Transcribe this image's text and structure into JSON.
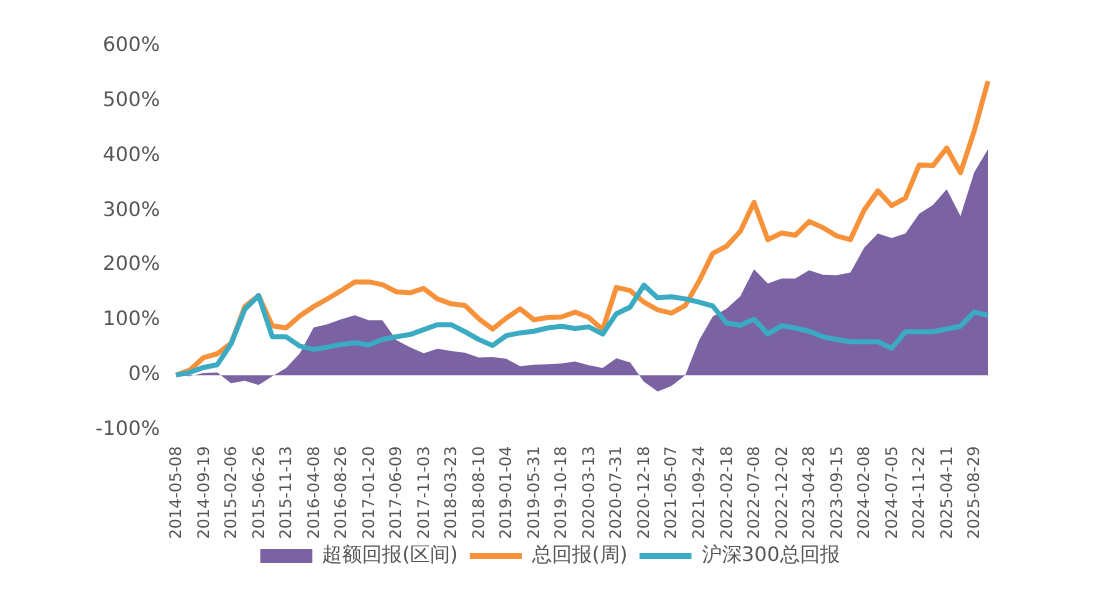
{
  "chart_data": {
    "type": "line",
    "categories": [
      "2014-05-08",
      null,
      "2014-09-19",
      null,
      "2015-02-06",
      null,
      "2015-06-26",
      null,
      "2015-11-13",
      null,
      "2016-04-08",
      null,
      "2016-08-26",
      null,
      "2017-01-20",
      null,
      "2017-06-09",
      null,
      "2017-11-03",
      null,
      "2018-03-23",
      null,
      "2018-08-10",
      null,
      "2019-01-04",
      null,
      "2019-05-31",
      null,
      "2019-10-18",
      null,
      "2020-03-13",
      null,
      "2020-07-31",
      null,
      "2020-12-18",
      null,
      "2021-05-07",
      null,
      "2021-09-24",
      null,
      "2022-02-18",
      null,
      "2022-07-08",
      null,
      "2022-12-02",
      null,
      "2023-04-28",
      null,
      "2023-09-15",
      null,
      "2024-02-08",
      null,
      "2024-07-05",
      null,
      "2024-11-22",
      null,
      "2025-04-11",
      null,
      "2025-08-29",
      null
    ],
    "series": [
      {
        "name": "超额回报(区间)",
        "type": "area",
        "color": "#7b62a3",
        "values": [
          0,
          -2,
          4,
          5,
          -15,
          -10,
          -18,
          -2,
          13,
          40,
          87,
          93,
          102,
          109,
          100,
          100,
          64,
          51,
          40,
          48,
          44,
          41,
          32,
          33,
          30,
          16,
          19,
          20,
          21,
          25,
          18,
          13,
          31,
          23,
          -12,
          -30,
          -20,
          0,
          63,
          107,
          121,
          144,
          193,
          167,
          176,
          176,
          191,
          183,
          182,
          187,
          232,
          258,
          250,
          258,
          294,
          310,
          339,
          290,
          370,
          412
        ]
      },
      {
        "name": "总回报(周)",
        "color": "#f7923a",
        "values": [
          0,
          9,
          32,
          39,
          58,
          125,
          145,
          90,
          86,
          108,
          125,
          139,
          154,
          170,
          170,
          165,
          152,
          150,
          158,
          139,
          130,
          127,
          103,
          84,
          104,
          121,
          101,
          105,
          106,
          115,
          105,
          83,
          160,
          154,
          133,
          119,
          113,
          127,
          171,
          222,
          235,
          262,
          315,
          247,
          259,
          255,
          280,
          269,
          254,
          247,
          301,
          336,
          309,
          323,
          383,
          382,
          414,
          369,
          445,
          536
        ]
      },
      {
        "name": "沪深300总回报",
        "color": "#3aabc3",
        "values": [
          0,
          5,
          14,
          19,
          57,
          120,
          145,
          70,
          70,
          53,
          47,
          51,
          56,
          59,
          55,
          65,
          70,
          74,
          83,
          92,
          92,
          79,
          65,
          54,
          72,
          77,
          80,
          86,
          89,
          85,
          88,
          75,
          112,
          124,
          164,
          141,
          143,
          139,
          133,
          126,
          95,
          91,
          102,
          75,
          90,
          86,
          80,
          70,
          65,
          61,
          61,
          61,
          49,
          79,
          79,
          79,
          84,
          89,
          115,
          109
        ]
      }
    ],
    "ylim": [
      -100,
      600
    ],
    "yticks": [
      {
        "value": -100,
        "label": "-100%"
      },
      {
        "value": 0,
        "label": "0%"
      },
      {
        "value": 100,
        "label": "100%"
      },
      {
        "value": 200,
        "label": "200%"
      },
      {
        "value": 300,
        "label": "300%"
      },
      {
        "value": 400,
        "label": "400%"
      },
      {
        "value": 500,
        "label": "500%"
      },
      {
        "value": 600,
        "label": "600%"
      }
    ],
    "grid": false,
    "legend": "bottom",
    "marker": "none"
  }
}
